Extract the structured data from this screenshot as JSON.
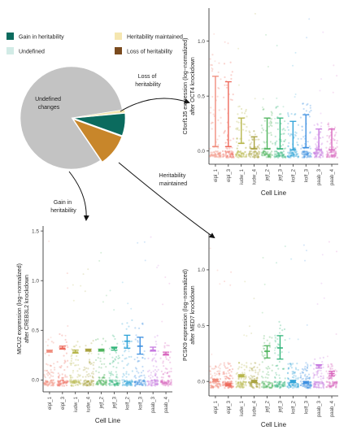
{
  "legend": {
    "items": [
      {
        "label": "Gain in heritability",
        "color": "#0b6b5e"
      },
      {
        "label": "Heritability maintained",
        "color": "#f5e6b0"
      },
      {
        "label": "Undefined",
        "color": "#d2ebe6"
      },
      {
        "label": "Loss of heritability",
        "color": "#7a4a1e"
      }
    ]
  },
  "pie_labels": {
    "undefined": "Undefined\nchanges"
  },
  "arrows": {
    "loss": "Loss of\nheritability",
    "maintained": "Heritability\nmaintained",
    "gain": "Gain in\nheritability"
  },
  "colors": {
    "grey": "#c3c3c3",
    "palette": [
      "#f08c7c",
      "#ee6a5c",
      "#b7b64a",
      "#a9a23e",
      "#4eb45c",
      "#32b57a",
      "#2fa3d8",
      "#3d8fe0",
      "#c77be0",
      "#d864bd"
    ]
  },
  "chart_data": [
    {
      "type": "pie",
      "categories": [
        "Undefined changes",
        "Heritability maintained",
        "Gain in heritability",
        "Loss of heritability"
      ],
      "values": [
        82,
        1,
        7,
        10
      ],
      "colors": [
        "#c3c3c3",
        "#f5e6b0",
        "#0b6b5e",
        "#c8862a"
      ]
    },
    {
      "type": "scatter",
      "title": "",
      "categories": [
        "eipl_1",
        "eipl_3",
        "iudw_1",
        "iudw_4",
        "jejf_2",
        "jejf_3",
        "kolf_2",
        "kolf_3",
        "paab_3",
        "paab_4"
      ],
      "means": [
        0.04,
        0.04,
        0.07,
        0.02,
        0.02,
        0.02,
        0.01,
        0.03,
        0.01,
        0.01
      ],
      "err_high": [
        0.68,
        0.63,
        0.3,
        0.13,
        0.3,
        0.3,
        0.27,
        0.33,
        0.2,
        0.2
      ],
      "ylabel": "C9orf135 expression (log−normalized)\nafter OCT4 knockdown",
      "xlabel": "Cell Line",
      "yticks": [
        "0.0",
        "0.5",
        "1.0"
      ],
      "ylim": [
        -0.12,
        1.3
      ]
    },
    {
      "type": "scatter",
      "categories": [
        "eipl_1",
        "eipl_3",
        "iudw_1",
        "iudw_4",
        "jejf_2",
        "jejf_3",
        "kolf_2",
        "kolf_3",
        "paab_3",
        "paab_4"
      ],
      "means": [
        0.29,
        0.32,
        0.28,
        0.3,
        0.3,
        0.32,
        0.39,
        0.34,
        0.3,
        0.26
      ],
      "err_low": [
        0.28,
        0.31,
        0.27,
        0.29,
        0.29,
        0.3,
        0.32,
        0.26,
        0.29,
        0.25
      ],
      "err_high": [
        0.3,
        0.34,
        0.3,
        0.31,
        0.31,
        0.33,
        0.45,
        0.43,
        0.33,
        0.28
      ],
      "ylabel": "MICU2 expression (log−normalized)\nafter CREB3L2 knockdown",
      "xlabel": "Cell Line",
      "yticks": [
        "0.0",
        "0.5",
        "1.0",
        "1.5"
      ],
      "ylim": [
        -0.12,
        1.55
      ]
    },
    {
      "type": "scatter",
      "categories": [
        "eipl_1",
        "eipl_3",
        "iudw_1",
        "iudw_4",
        "jejf_2",
        "jejf_3",
        "kolf_2",
        "kolf_3",
        "paab_3",
        "paab_4"
      ],
      "means": [
        0.01,
        -0.03,
        0.05,
        0.0,
        0.27,
        0.3,
        0.0,
        -0.01,
        0.14,
        0.07
      ],
      "err_low": [
        0.0,
        -0.04,
        0.04,
        -0.01,
        0.21,
        0.2,
        -0.01,
        -0.02,
        0.12,
        0.05
      ],
      "err_high": [
        0.02,
        -0.02,
        0.06,
        0.01,
        0.32,
        0.41,
        0.01,
        0.0,
        0.15,
        0.09
      ],
      "ylabel": "PCSK9 expression (log−normalized)\nafter MED7 knockdown",
      "xlabel": "Cell Line",
      "yticks": [
        "0.0",
        "0.5",
        "1.0"
      ],
      "ylim": [
        -0.13,
        1.32
      ]
    }
  ]
}
